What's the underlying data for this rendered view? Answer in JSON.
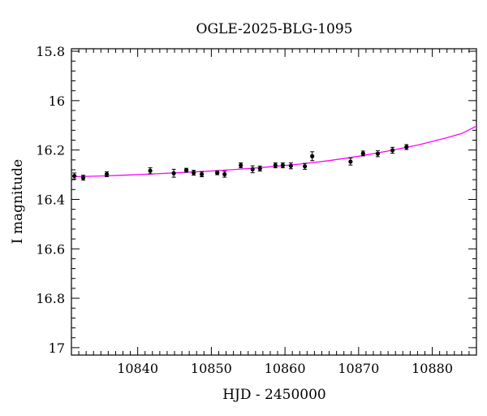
{
  "chart_data": {
    "type": "scatter",
    "title": "OGLE-2025-BLG-1095",
    "xlabel": "HJD - 2450000",
    "ylabel": "I magnitude",
    "xlim": [
      10831,
      10886
    ],
    "ylim": [
      17.03,
      15.79
    ],
    "y_inverted": true,
    "x_ticks": [
      10840,
      10850,
      10860,
      10870,
      10880
    ],
    "y_ticks": [
      15.8,
      16,
      16.2,
      16.4,
      16.6,
      16.8,
      17
    ],
    "x_tick_labels": [
      "10840",
      "10850",
      "10860",
      "10870",
      "10880"
    ],
    "y_tick_labels": [
      "15.8",
      "16",
      "16.2",
      "16.4",
      "16.6",
      "16.8",
      "17"
    ],
    "grid": false,
    "series": [
      {
        "kind": "points",
        "color": "#000000",
        "points": [
          {
            "x": 10831.4,
            "y": 16.305,
            "err": 0.012
          },
          {
            "x": 10832.6,
            "y": 16.312,
            "err": 0.01
          },
          {
            "x": 10835.8,
            "y": 16.298,
            "err": 0.01
          },
          {
            "x": 10841.7,
            "y": 16.284,
            "err": 0.012
          },
          {
            "x": 10844.9,
            "y": 16.294,
            "err": 0.016
          },
          {
            "x": 10846.6,
            "y": 16.282,
            "err": 0.008
          },
          {
            "x": 10847.6,
            "y": 16.292,
            "err": 0.01
          },
          {
            "x": 10848.7,
            "y": 16.298,
            "err": 0.01
          },
          {
            "x": 10850.8,
            "y": 16.292,
            "err": 0.008
          },
          {
            "x": 10851.8,
            "y": 16.298,
            "err": 0.012
          },
          {
            "x": 10854.0,
            "y": 16.262,
            "err": 0.01
          },
          {
            "x": 10855.6,
            "y": 16.278,
            "err": 0.014
          },
          {
            "x": 10856.6,
            "y": 16.275,
            "err": 0.01
          },
          {
            "x": 10858.7,
            "y": 16.262,
            "err": 0.01
          },
          {
            "x": 10859.7,
            "y": 16.262,
            "err": 0.01
          },
          {
            "x": 10860.8,
            "y": 16.264,
            "err": 0.012
          },
          {
            "x": 10862.7,
            "y": 16.266,
            "err": 0.012
          },
          {
            "x": 10863.7,
            "y": 16.225,
            "err": 0.018
          },
          {
            "x": 10868.9,
            "y": 16.247,
            "err": 0.014
          },
          {
            "x": 10870.6,
            "y": 16.214,
            "err": 0.01
          },
          {
            "x": 10872.6,
            "y": 16.215,
            "err": 0.012
          },
          {
            "x": 10874.6,
            "y": 16.201,
            "err": 0.012
          },
          {
            "x": 10876.5,
            "y": 16.188,
            "err": 0.01
          }
        ]
      },
      {
        "kind": "line",
        "color": "#ff00ff",
        "points": [
          {
            "x": 10831,
            "y": 16.308
          },
          {
            "x": 10834,
            "y": 16.306
          },
          {
            "x": 10838,
            "y": 16.302
          },
          {
            "x": 10842,
            "y": 16.297
          },
          {
            "x": 10846,
            "y": 16.291
          },
          {
            "x": 10850,
            "y": 16.285
          },
          {
            "x": 10854,
            "y": 16.277
          },
          {
            "x": 10858,
            "y": 16.268
          },
          {
            "x": 10862,
            "y": 16.257
          },
          {
            "x": 10866,
            "y": 16.243
          },
          {
            "x": 10870,
            "y": 16.225
          },
          {
            "x": 10874,
            "y": 16.204
          },
          {
            "x": 10878,
            "y": 16.18
          },
          {
            "x": 10882,
            "y": 16.15
          },
          {
            "x": 10884,
            "y": 16.133
          },
          {
            "x": 10886,
            "y": 16.103
          }
        ]
      }
    ]
  }
}
